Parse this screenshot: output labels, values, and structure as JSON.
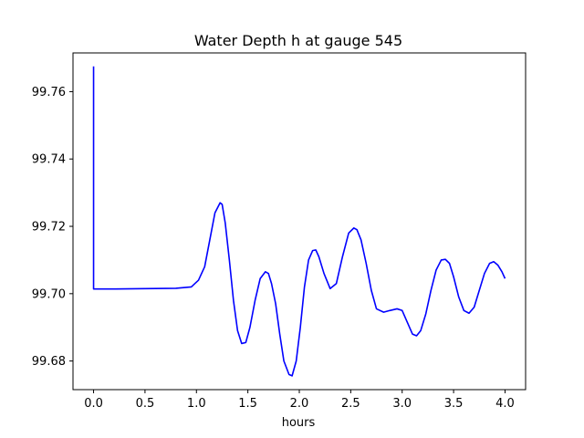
{
  "chart_data": {
    "type": "line",
    "title": "Water Depth h at gauge 545",
    "xlabel": "hours",
    "ylabel": "",
    "xlim": [
      -0.2,
      4.2
    ],
    "ylim": [
      99.6715,
      99.7715
    ],
    "xticks": [
      0.0,
      0.5,
      1.0,
      1.5,
      2.0,
      2.5,
      3.0,
      3.5,
      4.0
    ],
    "xtick_labels": [
      "0.0",
      "0.5",
      "1.0",
      "1.5",
      "2.0",
      "2.5",
      "3.0",
      "3.5",
      "4.0"
    ],
    "yticks": [
      99.68,
      99.7,
      99.72,
      99.74,
      99.76
    ],
    "ytick_labels": [
      "99.68",
      "99.70",
      "99.72",
      "99.74",
      "99.76"
    ],
    "grid": false,
    "series": [
      {
        "color": "#0000ff",
        "x": [
          0.0,
          0.0,
          0.0,
          0.2,
          0.5,
          0.8,
          0.95,
          1.02,
          1.08,
          1.13,
          1.18,
          1.23,
          1.25,
          1.28,
          1.32,
          1.36,
          1.4,
          1.44,
          1.48,
          1.52,
          1.57,
          1.62,
          1.67,
          1.7,
          1.73,
          1.77,
          1.81,
          1.85,
          1.9,
          1.93,
          1.97,
          2.01,
          2.05,
          2.09,
          2.13,
          2.16,
          2.19,
          2.24,
          2.3,
          2.36,
          2.42,
          2.48,
          2.53,
          2.56,
          2.6,
          2.65,
          2.7,
          2.75,
          2.82,
          2.88,
          2.95,
          3.0,
          3.05,
          3.1,
          3.14,
          3.18,
          3.23,
          3.28,
          3.33,
          3.38,
          3.42,
          3.46,
          3.5,
          3.55,
          3.6,
          3.65,
          3.7,
          3.75,
          3.8,
          3.85,
          3.89,
          3.93,
          3.97,
          4.0
        ],
        "y": [
          99.7675,
          99.7015,
          99.7014,
          99.7014,
          99.7015,
          99.7016,
          99.702,
          99.704,
          99.708,
          99.716,
          99.724,
          99.727,
          99.7265,
          99.721,
          99.71,
          99.698,
          99.689,
          99.6852,
          99.6855,
          99.69,
          99.698,
          99.7045,
          99.7065,
          99.706,
          99.703,
          99.697,
          99.688,
          99.68,
          99.676,
          99.6756,
          99.68,
          99.69,
          99.702,
          99.71,
          99.7128,
          99.713,
          99.711,
          99.706,
          99.7015,
          99.703,
          99.711,
          99.718,
          99.7195,
          99.719,
          99.716,
          99.709,
          99.701,
          99.6955,
          99.6945,
          99.695,
          99.6955,
          99.695,
          99.6915,
          99.688,
          99.6875,
          99.689,
          99.694,
          99.701,
          99.707,
          99.71,
          99.7102,
          99.709,
          99.705,
          99.699,
          99.695,
          99.6942,
          99.696,
          99.701,
          99.706,
          99.709,
          99.7095,
          99.7085,
          99.7065,
          99.7045
        ]
      }
    ]
  }
}
